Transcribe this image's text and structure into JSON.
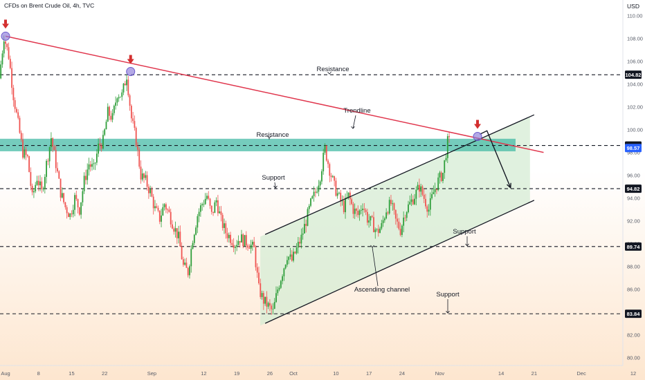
{
  "header": {
    "title": "CFDs on Brent Crude Oil, 4h, TVC",
    "currency": "USD"
  },
  "colors": {
    "up": "#26a69a",
    "up_candle": "#2e9e3a",
    "down": "#ef5350",
    "trendline": "#e0364d",
    "zone": "#3bb6a1",
    "channel_fill": "#d5ecd4",
    "arrow_marker": "#d32f2f",
    "touch_circle": "#8b7ad8",
    "badge_blue": "#2962ff",
    "bg_bottom": "#fde6cf"
  },
  "chart_data": {
    "type": "candlestick",
    "instrument": "CFDs on Brent Crude Oil",
    "interval": "4h",
    "source": "TVC",
    "ylim": [
      79.3,
      111.5
    ],
    "y_ticks": [
      80.0,
      82.0,
      84.0,
      86.0,
      88.0,
      90.0,
      92.0,
      94.0,
      96.0,
      98.0,
      100.0,
      102.0,
      104.0,
      106.0,
      108.0,
      110.0
    ],
    "x_ticks": [
      {
        "label": "Aug",
        "day": 0
      },
      {
        "label": "8",
        "day": 7
      },
      {
        "label": "15",
        "day": 14
      },
      {
        "label": "22",
        "day": 21
      },
      {
        "label": "Sep",
        "day": 31
      },
      {
        "label": "12",
        "day": 42
      },
      {
        "label": "19",
        "day": 49
      },
      {
        "label": "26",
        "day": 56
      },
      {
        "label": "Oct",
        "day": 61
      },
      {
        "label": "10",
        "day": 70
      },
      {
        "label": "17",
        "day": 77
      },
      {
        "label": "24",
        "day": 84
      },
      {
        "label": "Nov",
        "day": 92
      },
      {
        "label": "14",
        "day": 105
      },
      {
        "label": "21",
        "day": 112
      },
      {
        "label": "Dec",
        "day": 122
      },
      {
        "label": "12",
        "day": 133
      }
    ],
    "price_path": [
      [
        -1,
        104.5
      ],
      [
        0,
        108.2
      ],
      [
        1,
        106.5
      ],
      [
        2,
        103.0
      ],
      [
        3,
        100.5
      ],
      [
        4,
        98.0
      ],
      [
        5,
        97.5
      ],
      [
        6,
        94.0
      ],
      [
        7,
        95.8
      ],
      [
        8,
        94.5
      ],
      [
        9,
        97.0
      ],
      [
        10,
        99.3
      ],
      [
        11,
        97.0
      ],
      [
        12,
        94.5
      ],
      [
        13,
        93.2
      ],
      [
        14,
        92.5
      ],
      [
        15,
        94.0
      ],
      [
        16,
        93.0
      ],
      [
        17,
        95.5
      ],
      [
        18,
        97.0
      ],
      [
        19,
        96.5
      ],
      [
        20,
        98.5
      ],
      [
        21,
        99.0
      ],
      [
        22,
        101.5
      ],
      [
        23,
        101.0
      ],
      [
        24,
        103.2
      ],
      [
        25,
        103.0
      ],
      [
        26,
        104.8
      ],
      [
        27,
        101.0
      ],
      [
        28,
        99.0
      ],
      [
        29,
        96.0
      ],
      [
        30,
        95.5
      ],
      [
        31,
        94.5
      ],
      [
        32,
        93.0
      ],
      [
        33,
        92.2
      ],
      [
        34,
        93.5
      ],
      [
        35,
        92.6
      ],
      [
        36,
        91.5
      ],
      [
        37,
        90.5
      ],
      [
        38,
        88.0
      ],
      [
        39,
        87.5
      ],
      [
        40,
        90.5
      ],
      [
        41,
        92.5
      ],
      [
        42,
        93.5
      ],
      [
        43,
        94.2
      ],
      [
        44,
        92.5
      ],
      [
        45,
        93.8
      ],
      [
        46,
        92.0
      ],
      [
        47,
        91.0
      ],
      [
        48,
        90.5
      ],
      [
        49,
        90.0
      ],
      [
        50,
        90.5
      ],
      [
        51,
        90.2
      ],
      [
        52,
        90.0
      ],
      [
        53,
        89.5
      ],
      [
        54,
        86.0
      ],
      [
        55,
        85.0
      ],
      [
        56,
        84.5
      ],
      [
        57,
        84.0
      ],
      [
        58,
        86.0
      ],
      [
        59,
        87.5
      ],
      [
        60,
        89.0
      ],
      [
        61,
        88.5
      ],
      [
        62,
        89.5
      ],
      [
        63,
        90.5
      ],
      [
        64,
        92.0
      ],
      [
        65,
        93.5
      ],
      [
        66,
        94.5
      ],
      [
        67,
        96.0
      ],
      [
        68,
        98.3
      ],
      [
        69,
        96.5
      ],
      [
        70,
        95.0
      ],
      [
        71,
        94.0
      ],
      [
        72,
        93.2
      ],
      [
        73,
        94.2
      ],
      [
        74,
        93.0
      ],
      [
        75,
        92.5
      ],
      [
        76,
        93.5
      ],
      [
        77,
        92.2
      ],
      [
        78,
        91.8
      ],
      [
        79,
        91.0
      ],
      [
        80,
        91.5
      ],
      [
        81,
        93.0
      ],
      [
        82,
        93.5
      ],
      [
        83,
        92.0
      ],
      [
        84,
        91.2
      ],
      [
        85,
        92.8
      ],
      [
        86,
        93.5
      ],
      [
        87,
        94.2
      ],
      [
        88,
        95.0
      ],
      [
        89,
        94.0
      ],
      [
        90,
        93.0
      ],
      [
        91,
        94.5
      ],
      [
        92,
        95.5
      ],
      [
        93,
        96.2
      ],
      [
        94,
        98.9
      ]
    ],
    "horizontal_levels": [
      {
        "name": "resistance",
        "value": 104.82,
        "label": "104.82"
      },
      {
        "name": "resistance-zone",
        "value": 98.61,
        "label": "98.61"
      },
      {
        "name": "support",
        "value": 94.82,
        "label": "94.82"
      },
      {
        "name": "support",
        "value": 89.74,
        "label": "89.74"
      },
      {
        "name": "support",
        "value": 83.84,
        "label": "83.84"
      }
    ],
    "resistance_zone": {
      "from": 98.1,
      "to": 99.2
    },
    "trendline": {
      "start": {
        "day": 0,
        "value": 108.2
      },
      "end": {
        "day": 114,
        "value": 98.0
      }
    },
    "channel": {
      "lower": {
        "start": {
          "day": 55,
          "value": 83.0
        },
        "end": {
          "day": 112,
          "value": 93.8
        }
      },
      "upper": {
        "start": {
          "day": 55,
          "value": 90.8
        },
        "end": {
          "day": 112,
          "value": 101.3
        }
      }
    },
    "projection_arrow": [
      {
        "day": 100.5,
        "value": 99.6
      },
      {
        "day": 102,
        "value": 99.9
      },
      {
        "day": 107,
        "value": 94.9
      }
    ],
    "touch_points": [
      {
        "day": 0,
        "value": 108.2
      },
      {
        "day": 26.5,
        "value": 105.1
      },
      {
        "day": 100,
        "value": 99.4
      }
    ],
    "last_price": 98.57,
    "last_price_label": "98.57",
    "annotations": {
      "resistance_upper": "Resistance",
      "trendline": "Trendline",
      "resistance_zone": "Resistance",
      "support_upper": "Support",
      "support_mid": "Support",
      "support_lower": "Support",
      "channel": "Ascending channel"
    }
  }
}
